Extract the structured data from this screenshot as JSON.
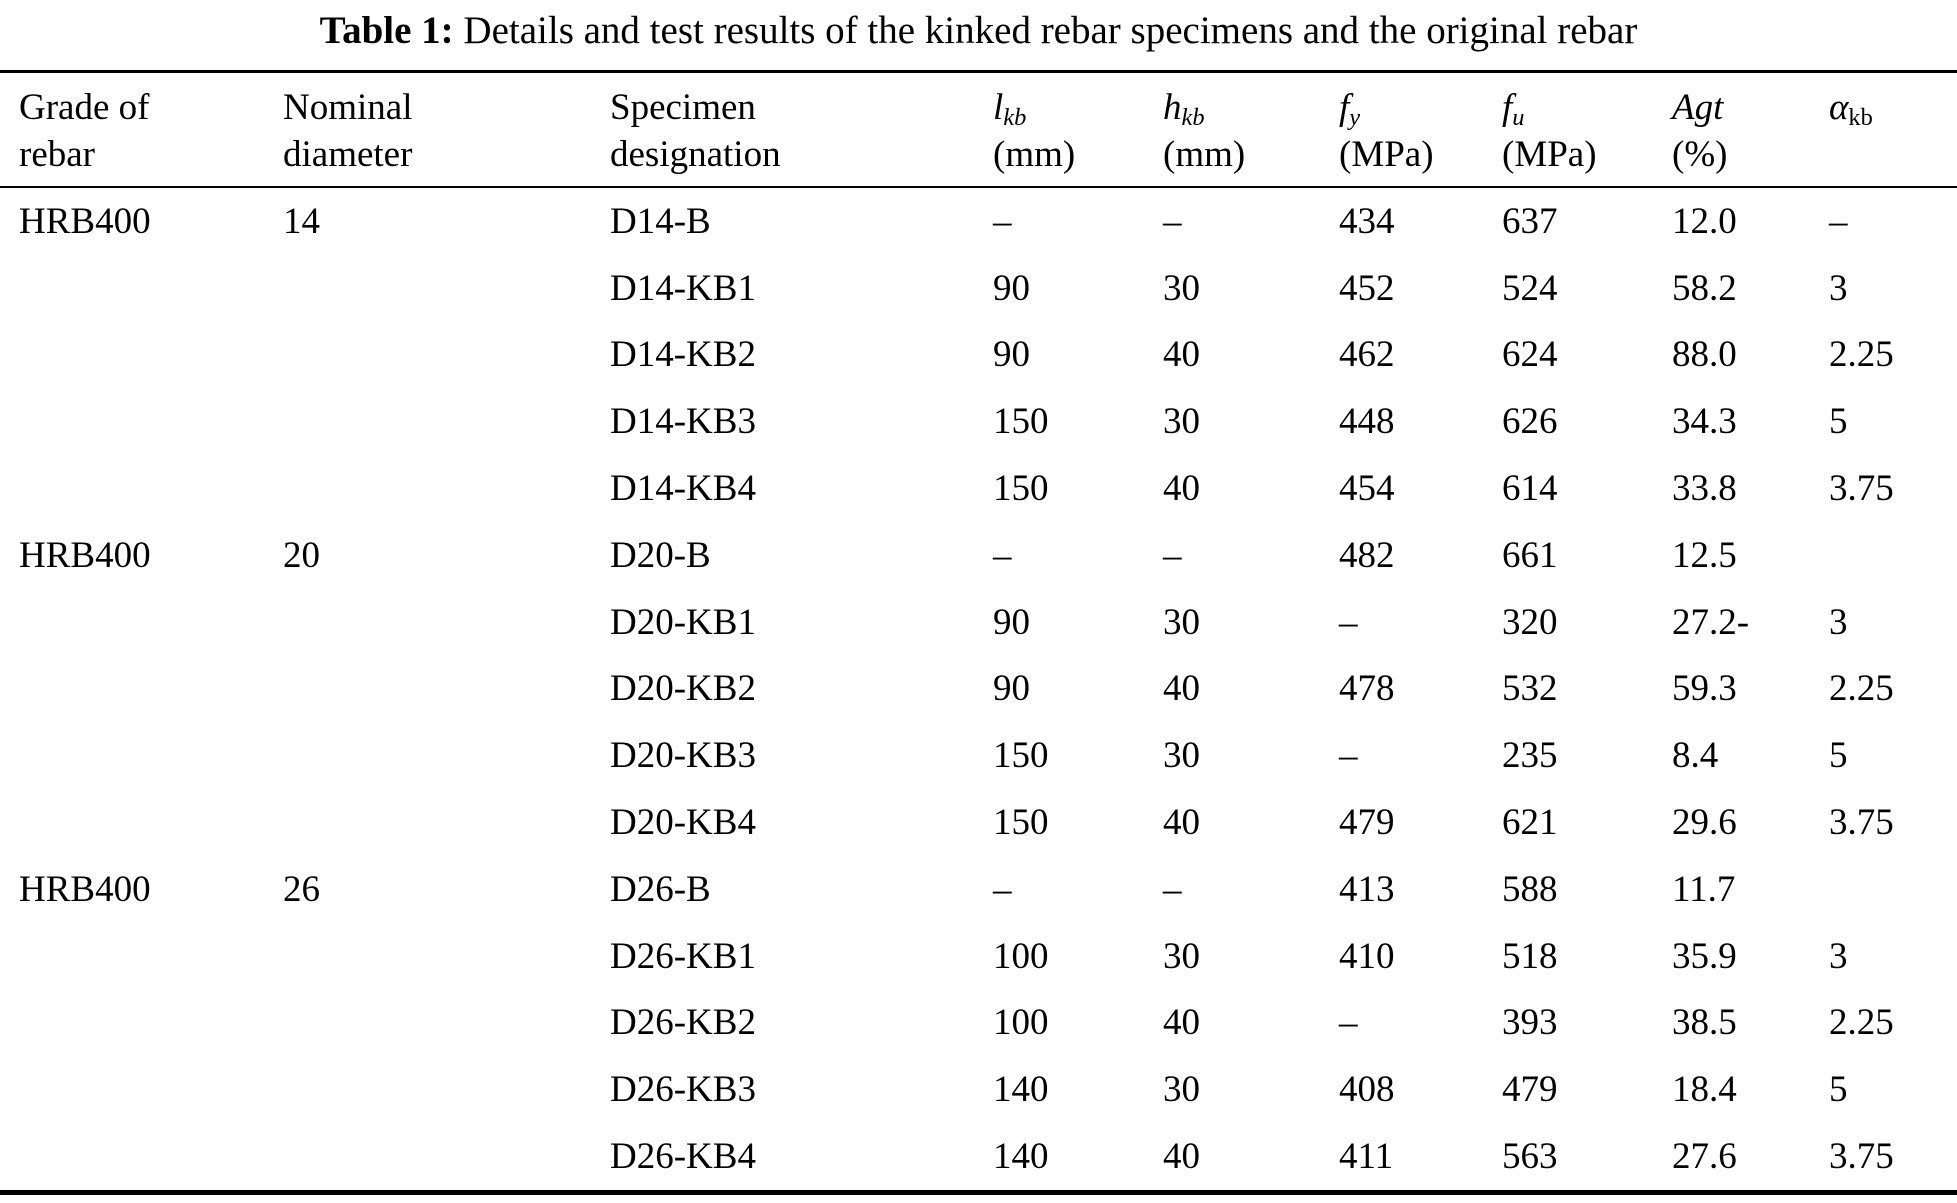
{
  "title": {
    "label": "Table 1:",
    "text": " Details and test results of the kinked rebar specimens and the original rebar"
  },
  "table": {
    "columns": [
      {
        "id": "grade",
        "line1": "Grade of",
        "line2": "rebar"
      },
      {
        "id": "diameter",
        "line1": "Nominal",
        "line2": "diameter"
      },
      {
        "id": "specimen",
        "line1": "Specimen",
        "line2": "designation"
      },
      {
        "id": "lkb",
        "symbol": "l",
        "sub": "kb",
        "unit": "(mm)"
      },
      {
        "id": "hkb",
        "symbol": "h",
        "sub": "kb",
        "unit": "(mm)"
      },
      {
        "id": "fy",
        "symbol": "f",
        "sub": "y",
        "unit": "(MPa)"
      },
      {
        "id": "fu",
        "symbol": "f",
        "sub": "u",
        "unit": "(MPa)"
      },
      {
        "id": "agt",
        "symbol": "Agt",
        "sub": "",
        "unit": "(%)"
      },
      {
        "id": "akb",
        "symbol": "α",
        "sub": "kb",
        "unit": ""
      }
    ],
    "rows": [
      {
        "grade": "HRB400",
        "diameter": "14",
        "specimen": "D14-B",
        "lkb": "–",
        "hkb": "–",
        "fy": "434",
        "fu": "637",
        "agt": "12.0",
        "akb": "–"
      },
      {
        "grade": "",
        "diameter": "",
        "specimen": "D14-KB1",
        "lkb": "90",
        "hkb": "30",
        "fy": "452",
        "fu": "524",
        "agt": "58.2",
        "akb": "3"
      },
      {
        "grade": "",
        "diameter": "",
        "specimen": "D14-KB2",
        "lkb": "90",
        "hkb": "40",
        "fy": "462",
        "fu": "624",
        "agt": "88.0",
        "akb": "2.25"
      },
      {
        "grade": "",
        "diameter": "",
        "specimen": "D14-KB3",
        "lkb": "150",
        "hkb": "30",
        "fy": "448",
        "fu": "626",
        "agt": "34.3",
        "akb": "5"
      },
      {
        "grade": "",
        "diameter": "",
        "specimen": "D14-KB4",
        "lkb": "150",
        "hkb": "40",
        "fy": "454",
        "fu": "614",
        "agt": "33.8",
        "akb": "3.75"
      },
      {
        "grade": "HRB400",
        "diameter": "20",
        "specimen": "D20-B",
        "lkb": "–",
        "hkb": "–",
        "fy": "482",
        "fu": "661",
        "agt": "12.5",
        "akb": ""
      },
      {
        "grade": "",
        "diameter": "",
        "specimen": "D20-KB1",
        "lkb": "90",
        "hkb": "30",
        "fy": "–",
        "fu": "320",
        "agt": "27.2-",
        "akb": "3"
      },
      {
        "grade": "",
        "diameter": "",
        "specimen": "D20-KB2",
        "lkb": "90",
        "hkb": "40",
        "fy": "478",
        "fu": "532",
        "agt": "59.3",
        "akb": "2.25"
      },
      {
        "grade": "",
        "diameter": "",
        "specimen": "D20-KB3",
        "lkb": "150",
        "hkb": "30",
        "fy": "–",
        "fu": "235",
        "agt": "8.4",
        "akb": "5"
      },
      {
        "grade": "",
        "diameter": "",
        "specimen": "D20-KB4",
        "lkb": "150",
        "hkb": "40",
        "fy": "479",
        "fu": "621",
        "agt": "29.6",
        "akb": "3.75"
      },
      {
        "grade": "HRB400",
        "diameter": "26",
        "specimen": "D26-B",
        "lkb": "–",
        "hkb": "–",
        "fy": "413",
        "fu": "588",
        "agt": "11.7",
        "akb": ""
      },
      {
        "grade": "",
        "diameter": "",
        "specimen": "D26-KB1",
        "lkb": "100",
        "hkb": "30",
        "fy": "410",
        "fu": "518",
        "agt": "35.9",
        "akb": "3"
      },
      {
        "grade": "",
        "diameter": "",
        "specimen": "D26-KB2",
        "lkb": "100",
        "hkb": "40",
        "fy": "–",
        "fu": "393",
        "agt": "38.5",
        "akb": "2.25"
      },
      {
        "grade": "",
        "diameter": "",
        "specimen": "D26-KB3",
        "lkb": "140",
        "hkb": "30",
        "fy": "408",
        "fu": "479",
        "agt": "18.4",
        "akb": "5"
      },
      {
        "grade": "",
        "diameter": "",
        "specimen": "D26-KB4",
        "lkb": "140",
        "hkb": "40",
        "fy": "411",
        "fu": "563",
        "agt": "27.6",
        "akb": "3.75"
      }
    ]
  }
}
